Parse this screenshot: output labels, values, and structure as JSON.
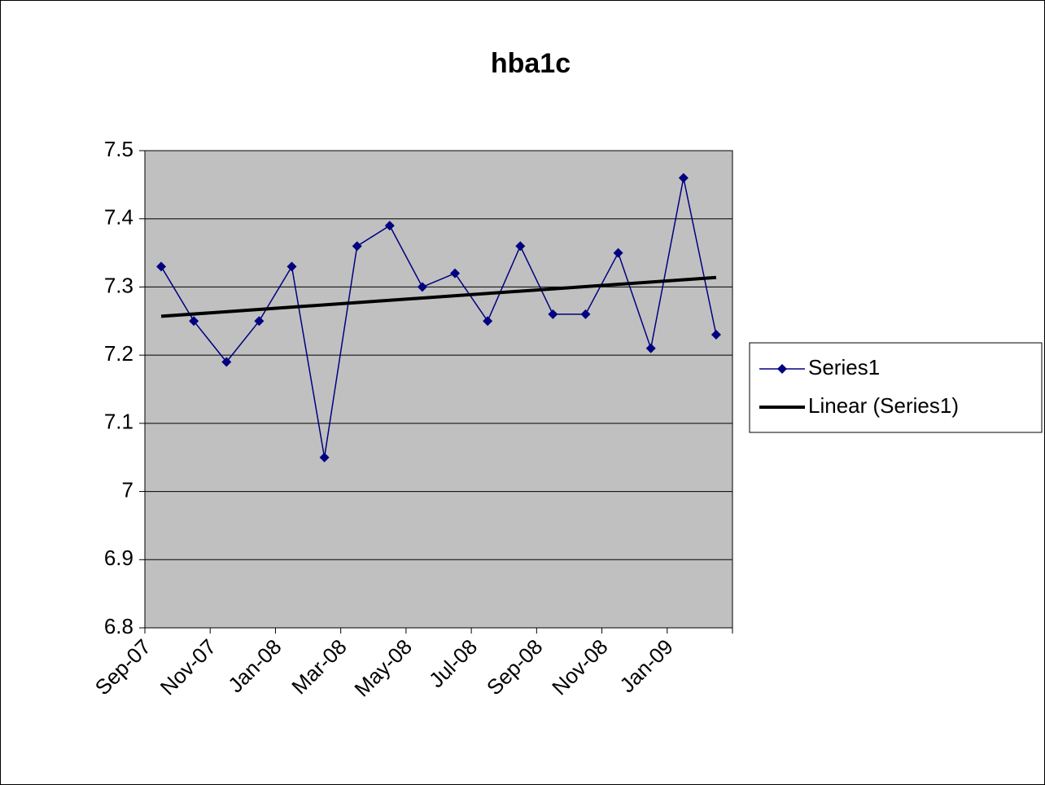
{
  "chart_data": {
    "type": "line",
    "title": "hba1c",
    "categories": [
      "Sep-07",
      null,
      "Nov-07",
      null,
      "Jan-08",
      null,
      "Mar-08",
      null,
      "May-08",
      null,
      "Jul-08",
      null,
      "Sep-08",
      null,
      "Nov-08",
      null,
      "Jan-09",
      null
    ],
    "series": [
      {
        "name": "Series1",
        "color": "#000080",
        "values": [
          7.33,
          7.25,
          7.19,
          7.25,
          7.33,
          7.05,
          7.36,
          7.39,
          7.3,
          7.32,
          7.25,
          7.36,
          7.26,
          7.26,
          7.35,
          7.21,
          7.46,
          7.23
        ]
      }
    ],
    "trendline": {
      "name": "Linear (Series1)",
      "color": "#000000",
      "values": [
        7.257,
        7.314
      ]
    },
    "ylim": [
      6.8,
      7.5
    ],
    "yticks": [
      6.8,
      6.9,
      7,
      7.1,
      7.2,
      7.3,
      7.4,
      7.5
    ],
    "grid": true,
    "legend": "right"
  }
}
